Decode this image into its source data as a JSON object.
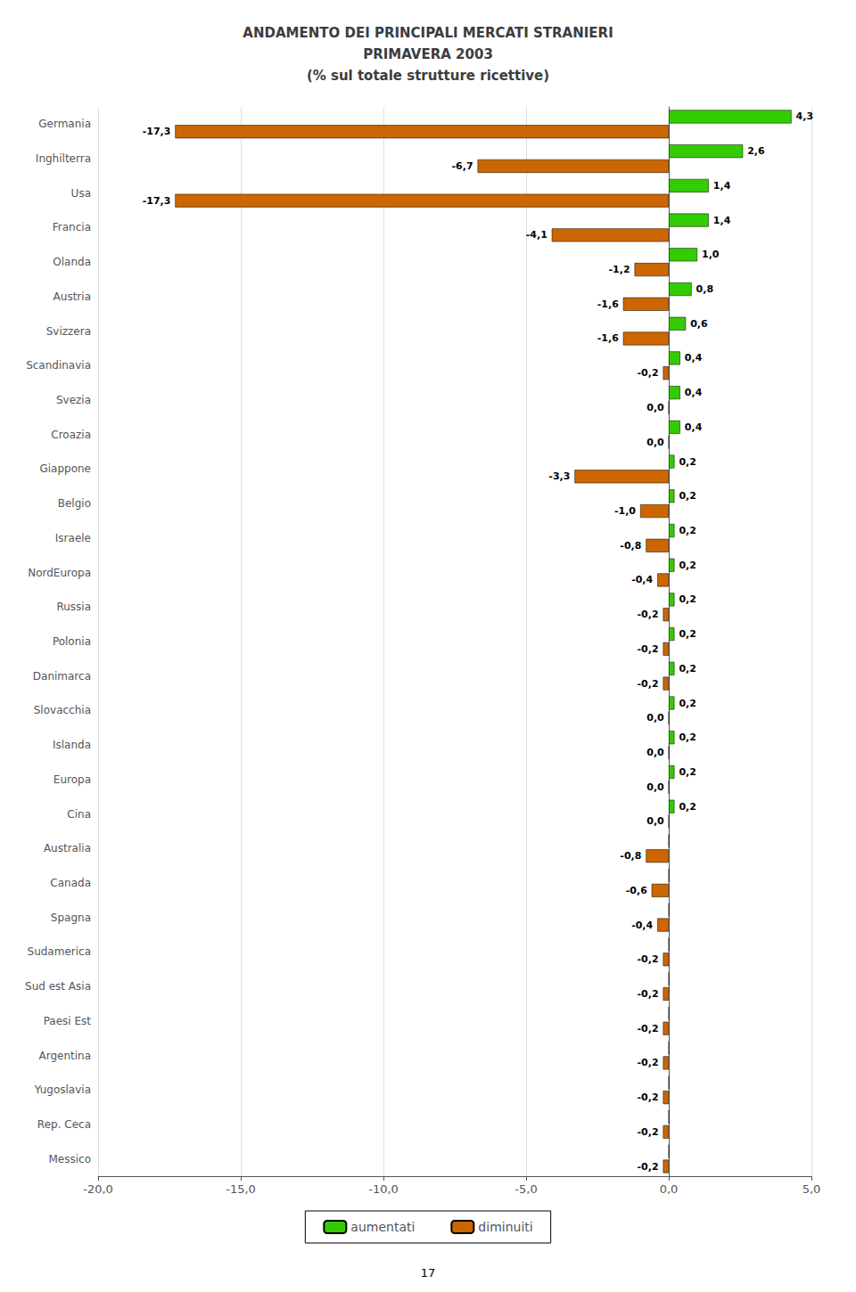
{
  "chart_data": {
    "type": "bar",
    "orientation": "horizontal",
    "title": "ANDAMENTO DEI PRINCIPALI MERCATI STRANIERI\nPRIMAVERA 2003\n(% sul totale strutture ricettive)",
    "categories": [
      "Germania",
      "Inghilterra",
      "Usa",
      "Francia",
      "Olanda",
      "Austria",
      "Svizzera",
      "Scandinavia",
      "Svezia",
      "Croazia",
      "Giappone",
      "Belgio",
      "Israele",
      "NordEuropa",
      "Russia",
      "Polonia",
      "Danimarca",
      "Slovacchia",
      "Islanda",
      "Europa",
      "Cina",
      "Australia",
      "Canada",
      "Spagna",
      "Sudamerica",
      "Sud est Asia",
      "Paesi Est",
      "Argentina",
      "Yugoslavia",
      "Rep. Ceca",
      "Messico"
    ],
    "series": [
      {
        "name": "aumentati",
        "color": "#33cc00",
        "values": [
          4.3,
          2.6,
          1.4,
          1.4,
          1.0,
          0.8,
          0.6,
          0.4,
          0.4,
          0.4,
          0.2,
          0.2,
          0.2,
          0.2,
          0.2,
          0.2,
          0.2,
          0.2,
          0.2,
          0.2,
          0.2,
          0.0,
          0.0,
          0.0,
          0.0,
          0.0,
          0.0,
          0.0,
          0.0,
          0.0,
          0.0
        ],
        "value_labels": [
          "4,3",
          "2,6",
          "1,4",
          "1,4",
          "1,0",
          "0,8",
          "0,6",
          "0,4",
          "0,4",
          "0,4",
          "0,2",
          "0,2",
          "0,2",
          "0,2",
          "0,2",
          "0,2",
          "0,2",
          "0,2",
          "0,2",
          "0,2",
          "0,2",
          null,
          null,
          null,
          null,
          null,
          null,
          null,
          null,
          null,
          null
        ]
      },
      {
        "name": "diminuiti",
        "color": "#cc6600",
        "values": [
          -17.3,
          -6.7,
          -17.3,
          -4.1,
          -1.2,
          -1.6,
          -1.6,
          -0.2,
          0.0,
          0.0,
          -3.3,
          -1.0,
          -0.8,
          -0.4,
          -0.2,
          -0.2,
          -0.2,
          0.0,
          0.0,
          0.0,
          0.0,
          -0.8,
          -0.6,
          -0.4,
          -0.2,
          -0.2,
          -0.2,
          -0.2,
          -0.2,
          -0.2,
          -0.2
        ],
        "value_labels": [
          "-17,3",
          "-6,7",
          "-17,3",
          "-4,1",
          "-1,2",
          "-1,6",
          "-1,6",
          "-0,2",
          "0,0",
          "0,0",
          "-3,3",
          "-1,0",
          "-0,8",
          "-0,4",
          "-0,2",
          "-0,2",
          "-0,2",
          "0,0",
          "0,0",
          "0,0",
          "0,0",
          "-0,8",
          "-0,6",
          "-0,4",
          "-0,2",
          "-0,2",
          "-0,2",
          "-0,2",
          "-0,2",
          "-0,2",
          "-0,2"
        ]
      }
    ],
    "data_labels": true,
    "xlim": [
      -20.0,
      5.0
    ],
    "xticks": [
      {
        "value": -20.0,
        "label": "-20,0"
      },
      {
        "value": -15.0,
        "label": "-15,0"
      },
      {
        "value": -10.0,
        "label": "-10,0"
      },
      {
        "value": -5.0,
        "label": "-5,0"
      },
      {
        "value": 0.0,
        "label": "0,0"
      },
      {
        "value": 5.0,
        "label": "5,0"
      }
    ],
    "grid": true,
    "legend": "bottom",
    "annotations": [
      "17"
    ]
  }
}
